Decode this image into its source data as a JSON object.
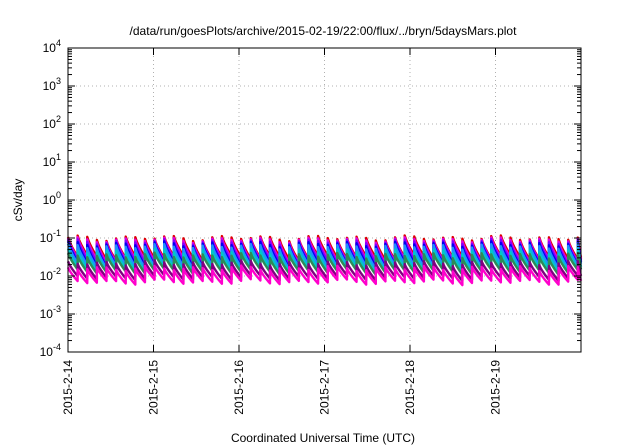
{
  "chart_data": {
    "type": "line",
    "title": "/data/run/goesPlots/archive/2015-02-19/22:00/flux/../bryn/5daysMars.plot",
    "xlabel": "Coordinated Universal Time (UTC)",
    "ylabel": "cSv/day",
    "yscale": "log",
    "ylim": [
      0.0001,
      10000
    ],
    "xlim": [
      "2015-02-14",
      "2015-02-20"
    ],
    "grid": true,
    "x_ticks": [
      "2015-2-14",
      "2015-2-15",
      "2015-2-16",
      "2015-2-17",
      "2015-2-18",
      "2015-2-19"
    ],
    "y_ticks": [
      {
        "base": "10",
        "exp": "-4",
        "value": 0.0001
      },
      {
        "base": "10",
        "exp": "-3",
        "value": 0.001
      },
      {
        "base": "10",
        "exp": "-2",
        "value": 0.01
      },
      {
        "base": "10",
        "exp": "-1",
        "value": 0.1
      },
      {
        "base": "10",
        "exp": "0",
        "value": 1
      },
      {
        "base": "10",
        "exp": "1",
        "value": 10
      },
      {
        "base": "10",
        "exp": "2",
        "value": 100
      },
      {
        "base": "10",
        "exp": "3",
        "value": 1000
      },
      {
        "base": "10",
        "exp": "4",
        "value": 10000
      }
    ],
    "series_pattern": "sawtooth, period about 2.7 h",
    "series": [
      {
        "color": "#dd0000",
        "peak": 0.1,
        "trough": 0.03
      },
      {
        "color": "#e000e0",
        "peak": 0.09,
        "trough": 0.026
      },
      {
        "color": "#8000ff",
        "peak": 0.08,
        "trough": 0.023
      },
      {
        "color": "#0000ee",
        "peak": 0.07,
        "trough": 0.02
      },
      {
        "color": "#1e90ff",
        "peak": 0.06,
        "trough": 0.018
      },
      {
        "color": "#00c8c8",
        "peak": 0.045,
        "trough": 0.015
      },
      {
        "color": "#2e8b57",
        "peak": 0.035,
        "trough": 0.013
      },
      {
        "color": "#800080",
        "peak": 0.022,
        "trough": 0.009
      },
      {
        "color": "#ff00cc",
        "peak": 0.016,
        "trough": 0.007
      }
    ]
  }
}
